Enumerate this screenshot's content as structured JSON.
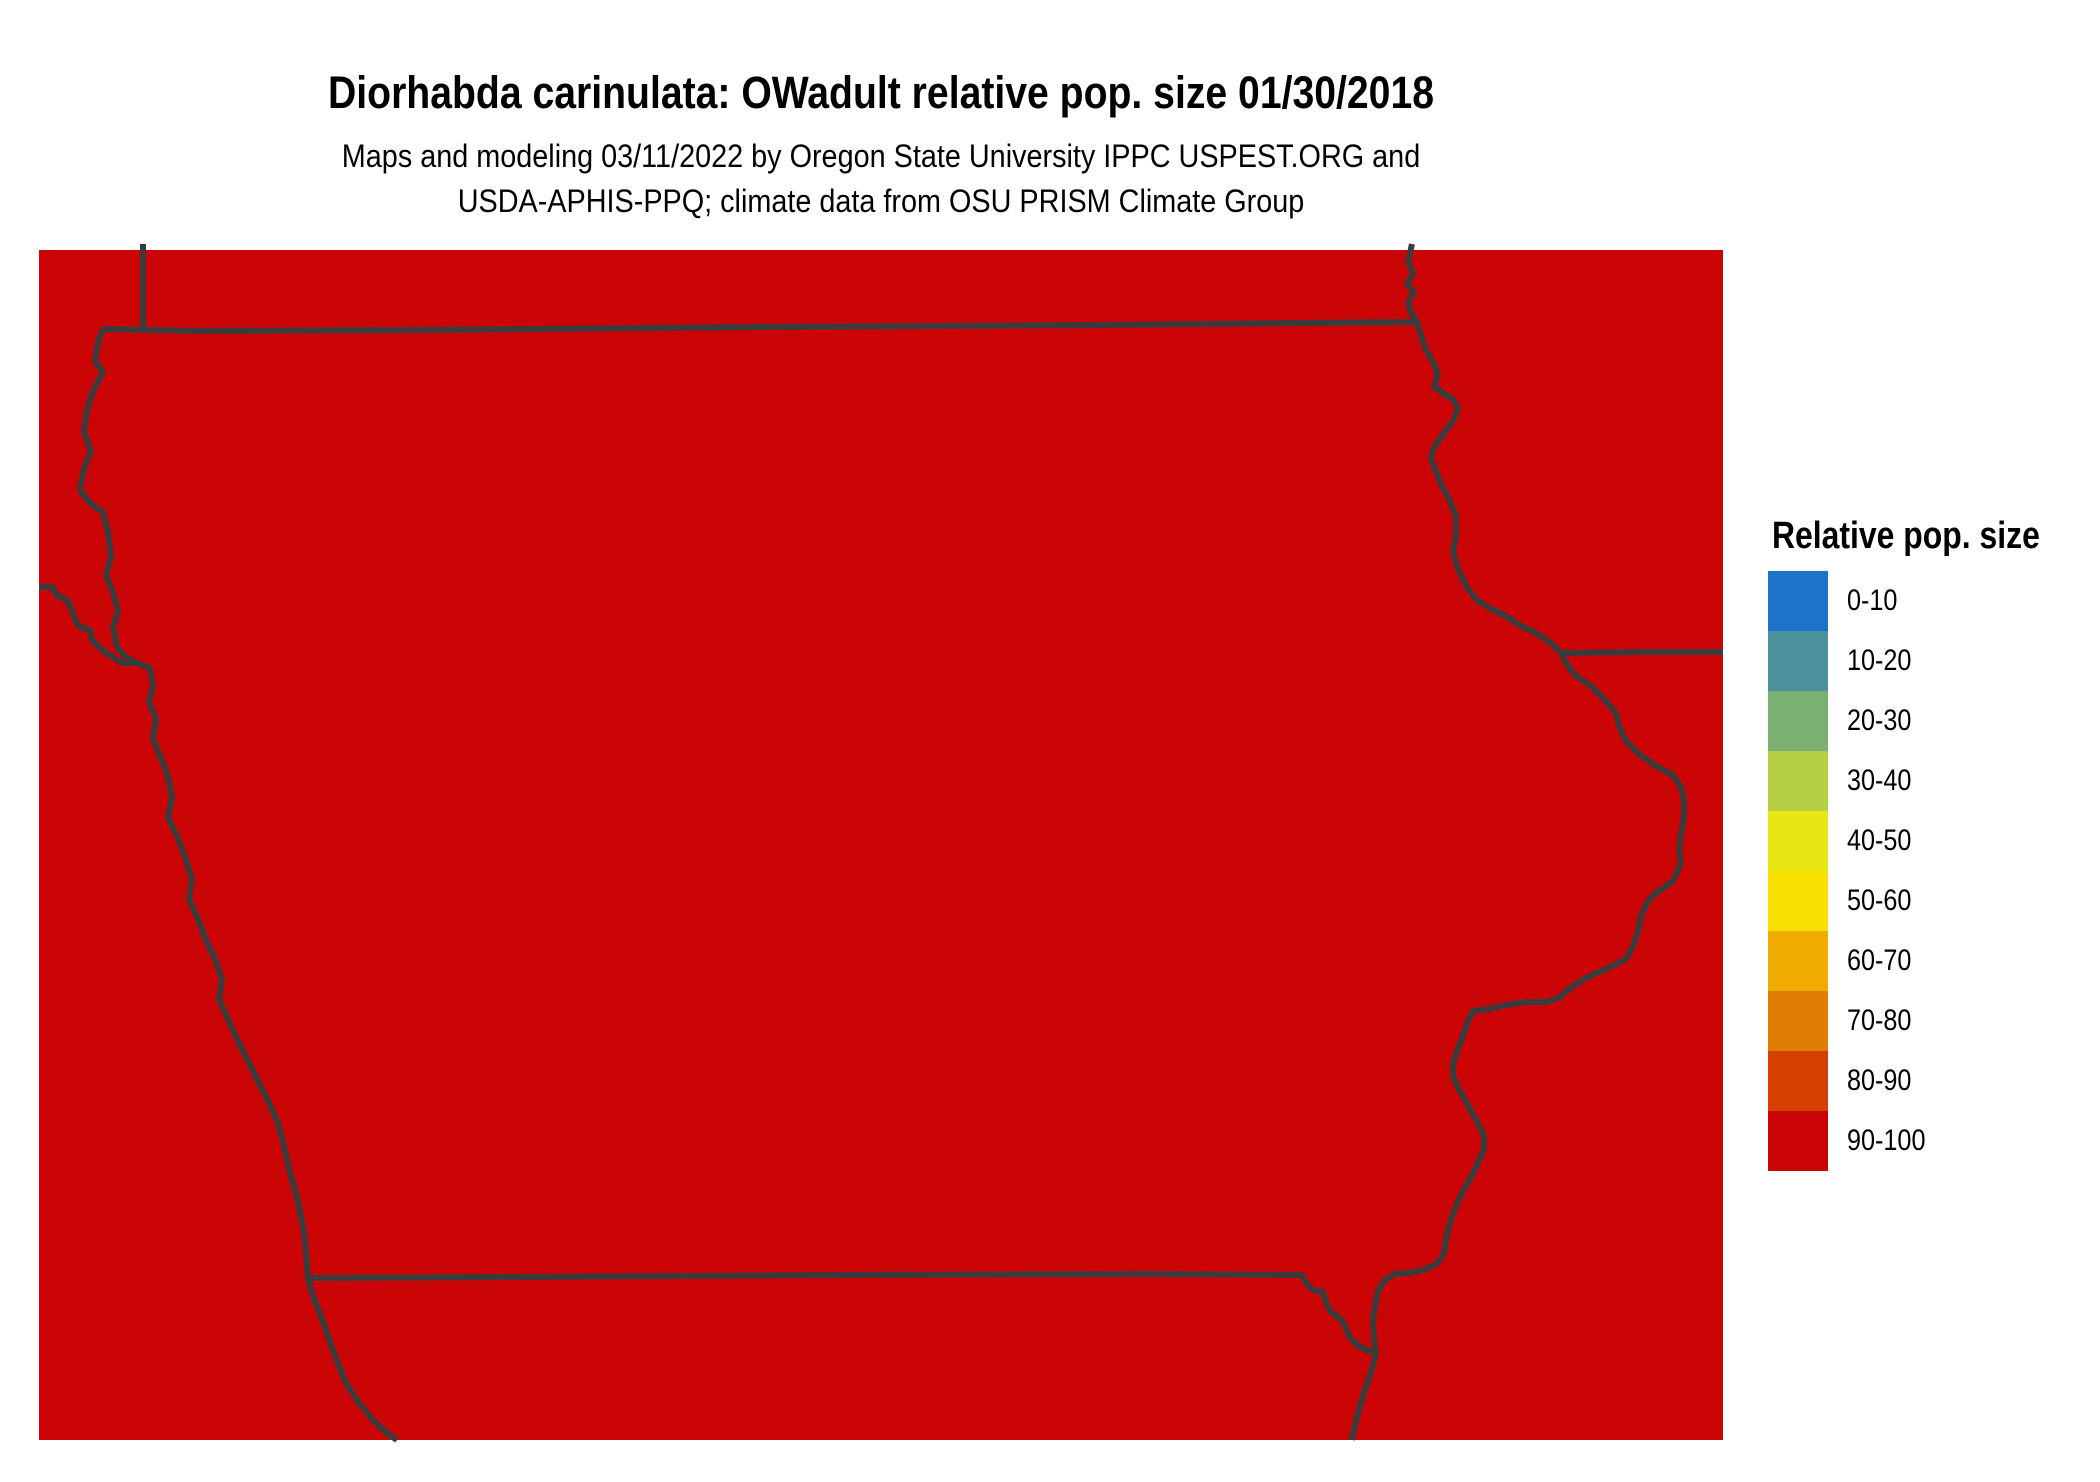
{
  "title": "Diorhabda carinulata: OWadult relative pop. size 01/30/2018",
  "subtitle_line1": "Maps and modeling 03/11/2022 by Oregon State University IPPC USPEST.ORG and",
  "subtitle_line2": "USDA-APHIS-PPQ; climate data from OSU PRISM Climate Group",
  "map": {
    "fill_color": "#cb0505",
    "line_color": "#393b3d"
  },
  "legend": {
    "title": "Relative pop. size",
    "items": [
      {
        "label": "0-10",
        "color": "#1e73c8"
      },
      {
        "label": "10-20",
        "color": "#4b929c"
      },
      {
        "label": "20-30",
        "color": "#7ab173"
      },
      {
        "label": "30-40",
        "color": "#b5cf45"
      },
      {
        "label": "40-50",
        "color": "#e6e713"
      },
      {
        "label": "50-60",
        "color": "#f8e000"
      },
      {
        "label": "60-70",
        "color": "#efab00"
      },
      {
        "label": "70-80",
        "color": "#e17c03"
      },
      {
        "label": "80-90",
        "color": "#d54001"
      },
      {
        "label": "90-100",
        "color": "#cb0505"
      }
    ]
  }
}
